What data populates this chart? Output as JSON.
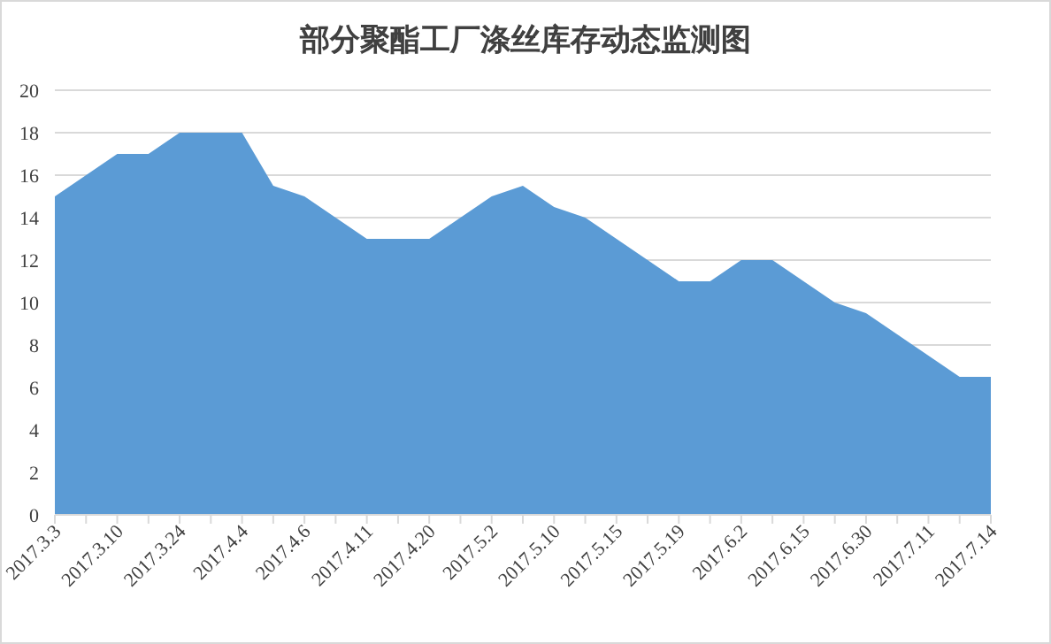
{
  "chart_data": {
    "type": "area",
    "title": "部分聚酯工厂涤丝库存动态监测图",
    "categories": [
      "2017.3.3",
      null,
      "2017.3.10",
      null,
      "2017.3.24",
      null,
      "2017.4.4",
      null,
      "2017.4.6",
      null,
      "2017.4.11",
      null,
      "2017.4.20",
      null,
      "2017.5.2",
      null,
      "2017.5.10",
      null,
      "2017.5.15",
      null,
      "2017.5.19",
      null,
      "2017.6.2",
      null,
      "2017.6.15",
      null,
      "2017.6.30",
      null,
      "2017.7.11",
      null,
      "2017.7.14"
    ],
    "values": [
      15,
      16,
      17,
      17,
      18,
      18,
      18,
      15.5,
      15,
      14,
      13,
      13,
      13,
      14,
      15,
      15.5,
      14.5,
      14,
      13,
      12,
      11,
      11,
      12,
      12,
      11,
      10,
      9.5,
      8.5,
      7.5,
      6.5,
      6.5
    ],
    "color": "#5b9bd5",
    "ylim": [
      0,
      20
    ],
    "yticks": [
      0,
      2,
      4,
      6,
      8,
      10,
      12,
      14,
      16,
      18,
      20
    ],
    "grid": "y"
  }
}
